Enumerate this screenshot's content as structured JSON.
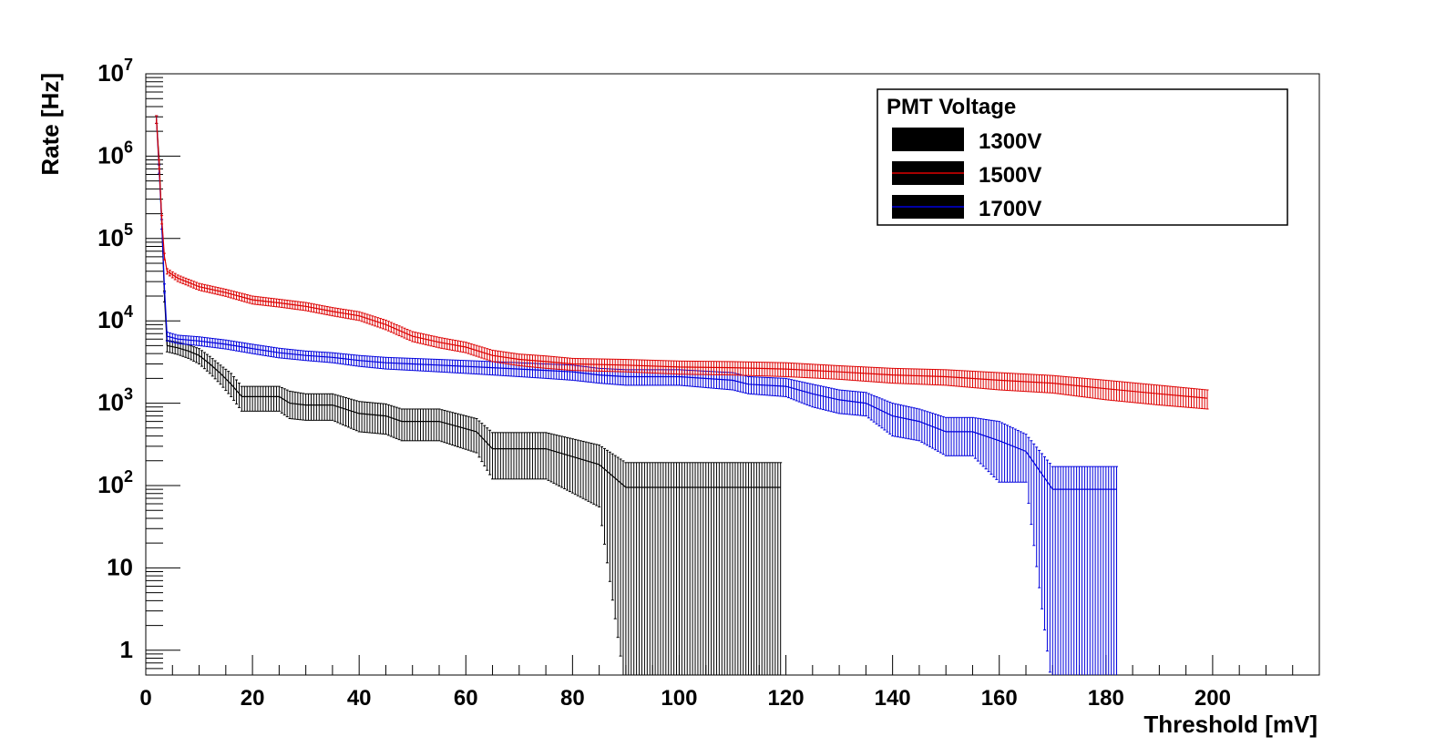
{
  "chart_data": {
    "type": "line",
    "title": "",
    "xlabel": "Threshold [mV]",
    "ylabel": "Rate [Hz]",
    "xlim": [
      0,
      220
    ],
    "ylim": [
      0.5,
      10000000
    ],
    "y_scale": "log",
    "grid": false,
    "x_ticks": [
      {
        "value": 0,
        "label": "0"
      },
      {
        "value": 20,
        "label": "20"
      },
      {
        "value": 40,
        "label": "40"
      },
      {
        "value": 60,
        "label": "60"
      },
      {
        "value": 80,
        "label": "80"
      },
      {
        "value": 100,
        "label": "100"
      },
      {
        "value": 120,
        "label": "120"
      },
      {
        "value": 140,
        "label": "140"
      },
      {
        "value": 160,
        "label": "160"
      },
      {
        "value": 180,
        "label": "180"
      },
      {
        "value": 200,
        "label": "200"
      }
    ],
    "y_ticks": [
      {
        "value": 1,
        "base": "1",
        "exp": ""
      },
      {
        "value": 10,
        "base": "10",
        "exp": ""
      },
      {
        "value": 100,
        "base": "10",
        "exp": "2"
      },
      {
        "value": 1000,
        "base": "10",
        "exp": "3"
      },
      {
        "value": 10000,
        "base": "10",
        "exp": "4"
      },
      {
        "value": 100000,
        "base": "10",
        "exp": "5"
      },
      {
        "value": 1000000,
        "base": "10",
        "exp": "6"
      },
      {
        "value": 10000000,
        "base": "10",
        "exp": "7"
      }
    ],
    "legend": {
      "title": "PMT Voltage",
      "position": "top-right",
      "entries": [
        "1300V",
        "1500V",
        "1700V"
      ]
    },
    "series": [
      {
        "name": "1300V",
        "color": "#000000",
        "points": [
          {
            "x": 2,
            "y": 2800000,
            "lo": 2500000,
            "hi": 3100000
          },
          {
            "x": 2.5,
            "y": 900000,
            "lo": 800000,
            "hi": 1000000
          },
          {
            "x": 3,
            "y": 150000,
            "lo": 130000,
            "hi": 170000
          },
          {
            "x": 3.5,
            "y": 20000,
            "lo": 17000,
            "hi": 23000
          },
          {
            "x": 4,
            "y": 5000,
            "lo": 4200,
            "hi": 5800
          },
          {
            "x": 6,
            "y": 4700,
            "lo": 3900,
            "hi": 5500
          },
          {
            "x": 8,
            "y": 4300,
            "lo": 3500,
            "hi": 5100
          },
          {
            "x": 10,
            "y": 3800,
            "lo": 3000,
            "hi": 4600
          },
          {
            "x": 12,
            "y": 3000,
            "lo": 2300,
            "hi": 3700
          },
          {
            "x": 14,
            "y": 2300,
            "lo": 1700,
            "hi": 2900
          },
          {
            "x": 16,
            "y": 1700,
            "lo": 1200,
            "hi": 2300
          },
          {
            "x": 18,
            "y": 1200,
            "lo": 800,
            "hi": 1600
          },
          {
            "x": 20,
            "y": 1200,
            "lo": 800,
            "hi": 1600
          },
          {
            "x": 25,
            "y": 1200,
            "lo": 800,
            "hi": 1600
          },
          {
            "x": 27,
            "y": 1000,
            "lo": 650,
            "hi": 1400
          },
          {
            "x": 30,
            "y": 950,
            "lo": 620,
            "hi": 1300
          },
          {
            "x": 35,
            "y": 950,
            "lo": 620,
            "hi": 1300
          },
          {
            "x": 40,
            "y": 750,
            "lo": 450,
            "hi": 1050
          },
          {
            "x": 45,
            "y": 700,
            "lo": 420,
            "hi": 980
          },
          {
            "x": 48,
            "y": 600,
            "lo": 350,
            "hi": 850
          },
          {
            "x": 55,
            "y": 600,
            "lo": 350,
            "hi": 850
          },
          {
            "x": 62,
            "y": 450,
            "lo": 250,
            "hi": 650
          },
          {
            "x": 65,
            "y": 280,
            "lo": 120,
            "hi": 440
          },
          {
            "x": 75,
            "y": 280,
            "lo": 120,
            "hi": 440
          },
          {
            "x": 85,
            "y": 180,
            "lo": 55,
            "hi": 310
          },
          {
            "x": 90,
            "y": 95,
            "lo": 0.3,
            "hi": 190
          },
          {
            "x": 100,
            "y": 95,
            "lo": 0.3,
            "hi": 190
          },
          {
            "x": 110,
            "y": 95,
            "lo": 0.3,
            "hi": 190
          },
          {
            "x": 119,
            "y": 95,
            "lo": 0.3,
            "hi": 190
          }
        ]
      },
      {
        "name": "1500V",
        "color": "#dd0000",
        "points": [
          {
            "x": 2,
            "y": 2800000,
            "lo": 2500000,
            "hi": 3100000
          },
          {
            "x": 2.5,
            "y": 800000,
            "lo": 700000,
            "hi": 900000
          },
          {
            "x": 3,
            "y": 170000,
            "lo": 150000,
            "hi": 190000
          },
          {
            "x": 3.5,
            "y": 60000,
            "lo": 55000,
            "hi": 66000
          },
          {
            "x": 4,
            "y": 40000,
            "lo": 37000,
            "hi": 43000
          },
          {
            "x": 6,
            "y": 33000,
            "lo": 30000,
            "hi": 36000
          },
          {
            "x": 10,
            "y": 26000,
            "lo": 23500,
            "hi": 28500
          },
          {
            "x": 15,
            "y": 22000,
            "lo": 19800,
            "hi": 24200
          },
          {
            "x": 20,
            "y": 18000,
            "lo": 16000,
            "hi": 20000
          },
          {
            "x": 25,
            "y": 16500,
            "lo": 14700,
            "hi": 18300
          },
          {
            "x": 30,
            "y": 15000,
            "lo": 13300,
            "hi": 16700
          },
          {
            "x": 35,
            "y": 13000,
            "lo": 11500,
            "hi": 14500
          },
          {
            "x": 40,
            "y": 11500,
            "lo": 10100,
            "hi": 12900
          },
          {
            "x": 45,
            "y": 9000,
            "lo": 7800,
            "hi": 10200
          },
          {
            "x": 50,
            "y": 6500,
            "lo": 5600,
            "hi": 7400
          },
          {
            "x": 55,
            "y": 5500,
            "lo": 4700,
            "hi": 6300
          },
          {
            "x": 60,
            "y": 4800,
            "lo": 4100,
            "hi": 5500
          },
          {
            "x": 65,
            "y": 3800,
            "lo": 3200,
            "hi": 4400
          },
          {
            "x": 70,
            "y": 3400,
            "lo": 2850,
            "hi": 3950
          },
          {
            "x": 75,
            "y": 3200,
            "lo": 2650,
            "hi": 3750
          },
          {
            "x": 80,
            "y": 3000,
            "lo": 2500,
            "hi": 3500
          },
          {
            "x": 90,
            "y": 2900,
            "lo": 2400,
            "hi": 3400
          },
          {
            "x": 100,
            "y": 2750,
            "lo": 2250,
            "hi": 3250
          },
          {
            "x": 110,
            "y": 2700,
            "lo": 2200,
            "hi": 3200
          },
          {
            "x": 120,
            "y": 2600,
            "lo": 2100,
            "hi": 3100
          },
          {
            "x": 130,
            "y": 2400,
            "lo": 1950,
            "hi": 2850
          },
          {
            "x": 140,
            "y": 2200,
            "lo": 1750,
            "hi": 2650
          },
          {
            "x": 150,
            "y": 2100,
            "lo": 1650,
            "hi": 2550
          },
          {
            "x": 160,
            "y": 1900,
            "lo": 1450,
            "hi": 2350
          },
          {
            "x": 170,
            "y": 1750,
            "lo": 1330,
            "hi": 2170
          },
          {
            "x": 180,
            "y": 1500,
            "lo": 1100,
            "hi": 1900
          },
          {
            "x": 190,
            "y": 1300,
            "lo": 950,
            "hi": 1650
          },
          {
            "x": 199,
            "y": 1150,
            "lo": 850,
            "hi": 1450
          }
        ]
      },
      {
        "name": "1700V",
        "color": "#0000dd",
        "points": [
          {
            "x": 2,
            "y": 2800000,
            "lo": 2500000,
            "hi": 3100000
          },
          {
            "x": 2.5,
            "y": 700000,
            "lo": 620000,
            "hi": 780000
          },
          {
            "x": 3,
            "y": 150000,
            "lo": 130000,
            "hi": 170000
          },
          {
            "x": 3.5,
            "y": 25000,
            "lo": 22000,
            "hi": 28000
          },
          {
            "x": 4,
            "y": 6500,
            "lo": 5700,
            "hi": 7300
          },
          {
            "x": 6,
            "y": 6000,
            "lo": 5300,
            "hi": 6700
          },
          {
            "x": 10,
            "y": 5700,
            "lo": 5000,
            "hi": 6400
          },
          {
            "x": 15,
            "y": 5200,
            "lo": 4550,
            "hi": 5850
          },
          {
            "x": 20,
            "y": 4600,
            "lo": 4000,
            "hi": 5200
          },
          {
            "x": 25,
            "y": 4100,
            "lo": 3550,
            "hi": 4650
          },
          {
            "x": 30,
            "y": 3800,
            "lo": 3300,
            "hi": 4300
          },
          {
            "x": 35,
            "y": 3600,
            "lo": 3100,
            "hi": 4100
          },
          {
            "x": 40,
            "y": 3300,
            "lo": 2800,
            "hi": 3800
          },
          {
            "x": 45,
            "y": 3100,
            "lo": 2600,
            "hi": 3600
          },
          {
            "x": 50,
            "y": 3000,
            "lo": 2500,
            "hi": 3500
          },
          {
            "x": 55,
            "y": 2900,
            "lo": 2400,
            "hi": 3400
          },
          {
            "x": 60,
            "y": 2800,
            "lo": 2300,
            "hi": 3300
          },
          {
            "x": 65,
            "y": 2700,
            "lo": 2200,
            "hi": 3200
          },
          {
            "x": 70,
            "y": 2600,
            "lo": 2100,
            "hi": 3100
          },
          {
            "x": 75,
            "y": 2500,
            "lo": 2000,
            "hi": 3000
          },
          {
            "x": 80,
            "y": 2400,
            "lo": 1900,
            "hi": 2900
          },
          {
            "x": 85,
            "y": 2200,
            "lo": 1750,
            "hi": 2650
          },
          {
            "x": 90,
            "y": 2100,
            "lo": 1650,
            "hi": 2550
          },
          {
            "x": 100,
            "y": 2100,
            "lo": 1650,
            "hi": 2550
          },
          {
            "x": 110,
            "y": 1900,
            "lo": 1450,
            "hi": 2350
          },
          {
            "x": 113,
            "y": 1700,
            "lo": 1300,
            "hi": 2100
          },
          {
            "x": 120,
            "y": 1600,
            "lo": 1200,
            "hi": 2000
          },
          {
            "x": 125,
            "y": 1300,
            "lo": 900,
            "hi": 1700
          },
          {
            "x": 130,
            "y": 1100,
            "lo": 750,
            "hi": 1450
          },
          {
            "x": 135,
            "y": 1000,
            "lo": 700,
            "hi": 1350
          },
          {
            "x": 140,
            "y": 700,
            "lo": 400,
            "hi": 1000
          },
          {
            "x": 145,
            "y": 600,
            "lo": 350,
            "hi": 850
          },
          {
            "x": 150,
            "y": 450,
            "lo": 230,
            "hi": 670
          },
          {
            "x": 155,
            "y": 450,
            "lo": 230,
            "hi": 670
          },
          {
            "x": 160,
            "y": 350,
            "lo": 110,
            "hi": 600
          },
          {
            "x": 165,
            "y": 260,
            "lo": 110,
            "hi": 420
          },
          {
            "x": 170,
            "y": 90,
            "lo": 0.3,
            "hi": 170
          },
          {
            "x": 175,
            "y": 90,
            "lo": 0.3,
            "hi": 170
          },
          {
            "x": 182,
            "y": 90,
            "lo": 0.3,
            "hi": 170
          }
        ]
      }
    ]
  }
}
